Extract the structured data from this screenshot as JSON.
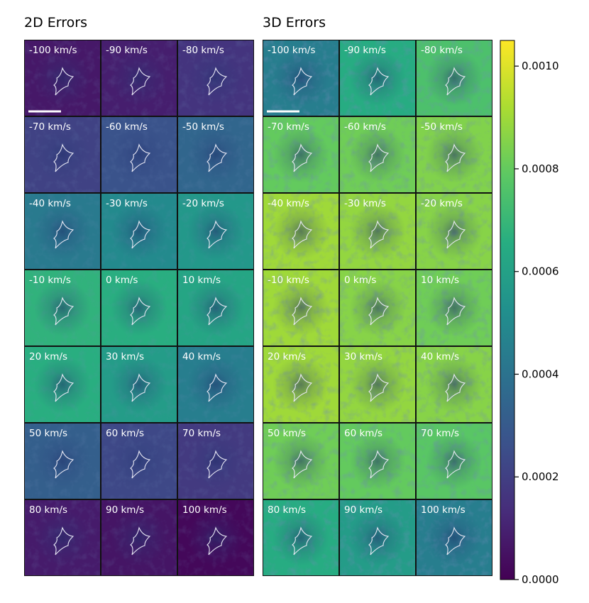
{
  "chart_data": [
    {
      "type": "heatmap",
      "title": "2D Errors",
      "layout": "7x3 grid of velocity-channel panels",
      "scale_bar": true,
      "channels": [
        {
          "label": "-100 km/s",
          "level": 7e-05
        },
        {
          "label": "-90 km/s",
          "level": 9e-05
        },
        {
          "label": "-80 km/s",
          "level": 0.00016
        },
        {
          "label": "-70 km/s",
          "level": 0.00021
        },
        {
          "label": "-60 km/s",
          "level": 0.00027
        },
        {
          "label": "-50 km/s",
          "level": 0.00035
        },
        {
          "label": "-40 km/s",
          "level": 0.00043
        },
        {
          "label": "-30 km/s",
          "level": 0.0005
        },
        {
          "label": "-20 km/s",
          "level": 0.00056
        },
        {
          "label": "-10 km/s",
          "level": 0.00068
        },
        {
          "label": "0 km/s",
          "level": 0.00066
        },
        {
          "label": "10 km/s",
          "level": 0.00062
        },
        {
          "label": "20 km/s",
          "level": 0.00066
        },
        {
          "label": "30 km/s",
          "level": 0.00058
        },
        {
          "label": "40 km/s",
          "level": 0.00045
        },
        {
          "label": "50 km/s",
          "level": 0.00032
        },
        {
          "label": "60 km/s",
          "level": 0.00023
        },
        {
          "label": "70 km/s",
          "level": 0.00018
        },
        {
          "label": "80 km/s",
          "level": 8e-05
        },
        {
          "label": "90 km/s",
          "level": 6e-05
        },
        {
          "label": "100 km/s",
          "level": 2e-05
        }
      ]
    },
    {
      "type": "heatmap",
      "title": "3D Errors",
      "layout": "7x3 grid of velocity-channel panels",
      "scale_bar": true,
      "channels": [
        {
          "label": "-100 km/s",
          "level": 0.00045
        },
        {
          "label": "-90 km/s",
          "level": 0.00065
        },
        {
          "label": "-80 km/s",
          "level": 0.00075
        },
        {
          "label": "-70 km/s",
          "level": 0.0008
        },
        {
          "label": "-60 km/s",
          "level": 0.00082
        },
        {
          "label": "-50 km/s",
          "level": 0.00085
        },
        {
          "label": "-40 km/s",
          "level": 0.0009
        },
        {
          "label": "-30 km/s",
          "level": 0.00088
        },
        {
          "label": "-20 km/s",
          "level": 0.00086
        },
        {
          "label": "-10 km/s",
          "level": 0.0009
        },
        {
          "label": "0 km/s",
          "level": 0.00086
        },
        {
          "label": "10 km/s",
          "level": 0.00082
        },
        {
          "label": "20 km/s",
          "level": 0.0009
        },
        {
          "label": "30 km/s",
          "level": 0.00088
        },
        {
          "label": "40 km/s",
          "level": 0.00086
        },
        {
          "label": "50 km/s",
          "level": 0.00082
        },
        {
          "label": "60 km/s",
          "level": 0.0008
        },
        {
          "label": "70 km/s",
          "level": 0.00078
        },
        {
          "label": "80 km/s",
          "level": 0.00065
        },
        {
          "label": "90 km/s",
          "level": 0.00058
        },
        {
          "label": "100 km/s",
          "level": 0.00045
        }
      ]
    }
  ],
  "colorbar": {
    "colormap": "viridis",
    "range": [
      0.0,
      0.00105
    ],
    "ticks": [
      0.0,
      0.0002,
      0.0004,
      0.0006,
      0.0008,
      0.001
    ],
    "tick_labels": [
      "0.0000",
      "0.0002",
      "0.0004",
      "0.0006",
      "0.0008",
      "0.0010"
    ]
  }
}
